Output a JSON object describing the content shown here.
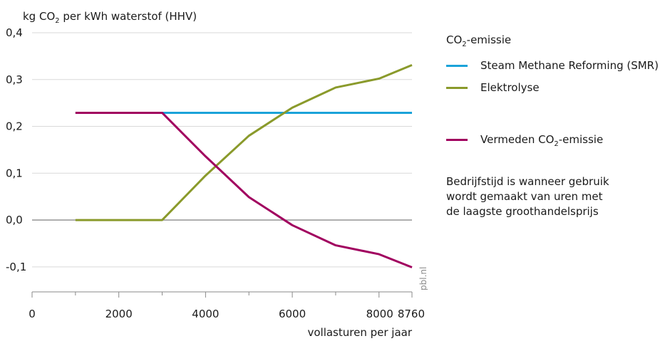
{
  "colors": {
    "smr": "#1ba3d9",
    "elektrolyse": "#8a9a2b",
    "vermeden": "#a1005f",
    "axis": "#8a8a8a",
    "grid": "#d9d9d9"
  },
  "chart_data": {
    "type": "line",
    "ylabel": {
      "pre": "kg CO",
      "sub": "2",
      "post": " per kWh waterstof (HHV)"
    },
    "xlabel": "vollasturen per jaar",
    "xlim": [
      0,
      8760
    ],
    "ylim": [
      -0.12,
      0.4
    ],
    "x_ticks": [
      0,
      2000,
      4000,
      6000,
      8000,
      8760
    ],
    "x_tick_labels": [
      "0",
      "2000",
      "4000",
      "6000",
      "8000",
      "8760"
    ],
    "y_ticks": [
      0.4,
      0.3,
      0.2,
      0.1,
      0.0,
      -0.1
    ],
    "y_tick_labels": [
      "0,4",
      "0,3",
      "0,2",
      "0,1",
      "0,0",
      "-0,1"
    ],
    "series": [
      {
        "name": "Steam Methane Reforming (SMR)",
        "key": "smr",
        "x": [
          1000,
          8760
        ],
        "y": [
          0.229,
          0.229
        ]
      },
      {
        "name": "Elektrolyse",
        "key": "elektrolyse",
        "x": [
          1000,
          3000,
          4000,
          5000,
          6000,
          7000,
          8000,
          8760
        ],
        "y": [
          0.0,
          0.0,
          0.095,
          0.18,
          0.24,
          0.283,
          0.302,
          0.331
        ]
      },
      {
        "name": "Vermeden CO2-emissie",
        "key": "vermeden",
        "x": [
          1000,
          3000,
          4000,
          5000,
          6000,
          7000,
          8000,
          8760
        ],
        "y": [
          0.229,
          0.229,
          0.136,
          0.049,
          -0.011,
          -0.054,
          -0.073,
          -0.101
        ]
      }
    ]
  },
  "legend": {
    "title_pre": "CO",
    "title_sub": "2",
    "title_post": "-emissie",
    "smr_label": "Steam Methane Reforming (SMR)",
    "elektrolyse_label": "Elektrolyse",
    "vermeden_pre": "Vermeden CO",
    "vermeden_sub": "2",
    "vermeden_post": "-emissie"
  },
  "note": "Bedrijfstijd is wanneer gebruik\nwordt gemaakt van uren met\nde laagste groothandelsprijs",
  "credit": "pbl.nl"
}
